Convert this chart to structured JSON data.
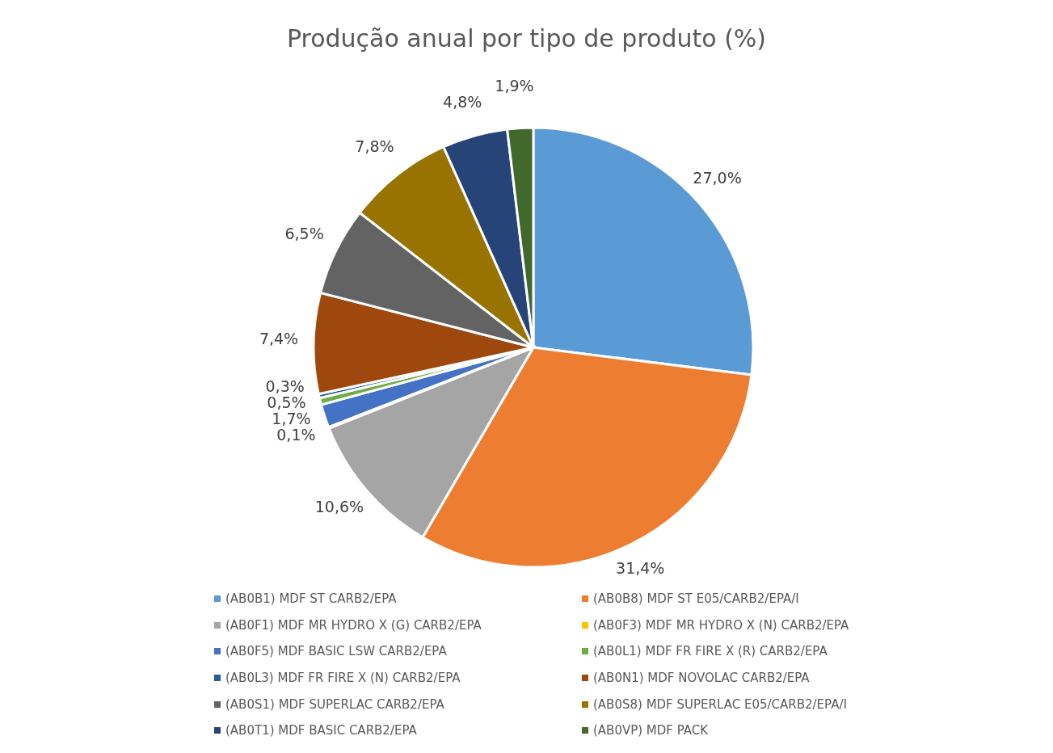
{
  "chart_data": {
    "type": "pie",
    "title": "Produção anual por tipo de produto (%)",
    "categories": [
      "(AB0B1) MDF ST CARB2/EPA",
      "(AB0B8) MDF ST E05/CARB2/EPA/I",
      "(AB0F1) MDF MR HYDRO X (G) CARB2/EPA",
      "(AB0F3) MDF MR HYDRO X (N) CARB2/EPA",
      "(AB0F5) MDF BASIC LSW CARB2/EPA",
      "(AB0L1) MDF FR FIRE X (R) CARB2/EPA",
      "(AB0L3) MDF FR FIRE X (N) CARB2/EPA",
      "(AB0N1) MDF NOVOLAC CARB2/EPA",
      "(AB0S1) MDF SUPERLAC CARB2/EPA",
      "(AB0S8) MDF SUPERLAC E05/CARB2/EPA/I",
      "(AB0T1) MDF BASIC CARB2/EPA",
      "(AB0VP) MDF PACK"
    ],
    "values": [
      27.0,
      31.4,
      10.6,
      0.1,
      1.7,
      0.5,
      0.3,
      7.4,
      6.5,
      7.8,
      4.8,
      1.9
    ],
    "value_labels": [
      "27,0%",
      "31,4%",
      "10,6%",
      "0,1%",
      "1,7%",
      "0,5%",
      "0,3%",
      "7,4%",
      "6,5%",
      "7,8%",
      "4,8%",
      "1,9%"
    ],
    "colors": [
      "#5b9bd5",
      "#ed7d31",
      "#a5a5a5",
      "#ffc000",
      "#4472c4",
      "#70ad47",
      "#255e91",
      "#9e480e",
      "#636363",
      "#997300",
      "#264478",
      "#43682b"
    ],
    "legend": "bottom"
  }
}
